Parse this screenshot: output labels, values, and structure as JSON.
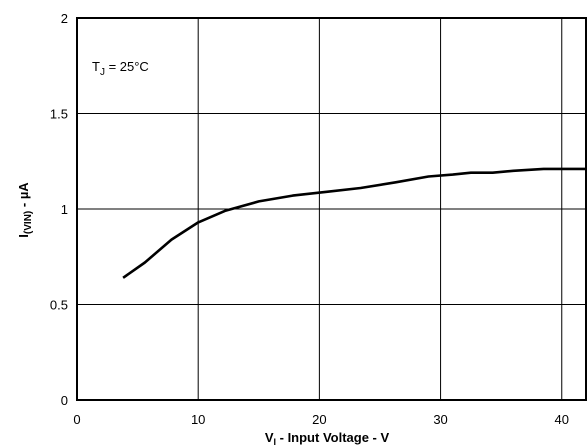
{
  "chart_data": {
    "type": "line",
    "xlabel_main": "V",
    "xlabel_sub": "I",
    "xlabel_rest": " - Input Voltage - V",
    "ylabel_main": "I",
    "ylabel_sub": "(VIN)",
    "ylabel_rest": " - µA",
    "annotation_main": "T",
    "annotation_sub": "J",
    "annotation_rest": " = 25°C",
    "xlim": [
      0,
      42
    ],
    "ylim": [
      0,
      2
    ],
    "x_ticks": [
      0,
      10,
      20,
      30,
      40
    ],
    "x_tick_labels": [
      "0",
      "10",
      "20",
      "30",
      "40"
    ],
    "y_ticks": [
      0,
      0.5,
      1,
      1.5,
      2
    ],
    "y_tick_labels": [
      "0",
      "0.5",
      "1",
      "1.5",
      "2"
    ],
    "grid": true,
    "series": [
      {
        "x": [
          3.8,
          5.6,
          7.8,
          10,
          12.2,
          15,
          17.8,
          20.6,
          23.4,
          26.3,
          29,
          31,
          32.5,
          34.3,
          36,
          38.5,
          40.5,
          42
        ],
        "y": [
          0.64,
          0.72,
          0.84,
          0.93,
          0.99,
          1.04,
          1.07,
          1.09,
          1.11,
          1.14,
          1.17,
          1.18,
          1.19,
          1.19,
          1.2,
          1.21,
          1.21,
          1.21
        ]
      }
    ]
  }
}
